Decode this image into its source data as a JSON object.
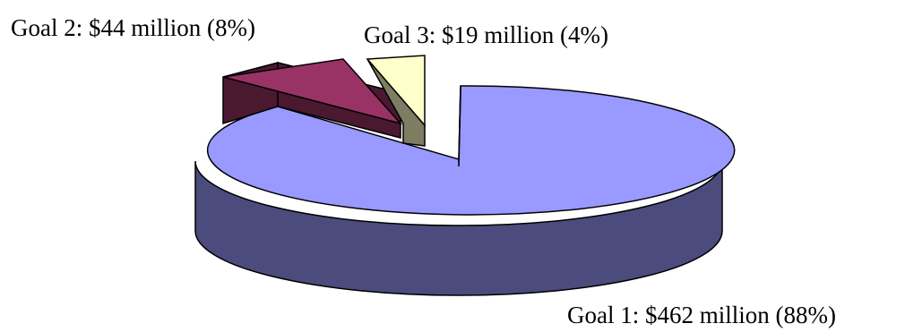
{
  "chart_data": {
    "type": "pie",
    "style": "3d-exploded",
    "title": "",
    "legend": "none",
    "slices": [
      {
        "label": "Goal 1: $462 million (88%)",
        "value": 462,
        "percent": 88,
        "color": "#9999ff",
        "side_color": "#4b4b7d",
        "exploded": false
      },
      {
        "label": "Goal 2: $44 million (8%)",
        "value": 44,
        "percent": 8,
        "color": "#993366",
        "side_color": "#4a1930",
        "exploded": true
      },
      {
        "label": "Goal 3: $19 million (4%)",
        "value": 19,
        "percent": 4,
        "color": "#ffffcc",
        "side_color": "#7d7d64",
        "exploded": true
      }
    ]
  }
}
